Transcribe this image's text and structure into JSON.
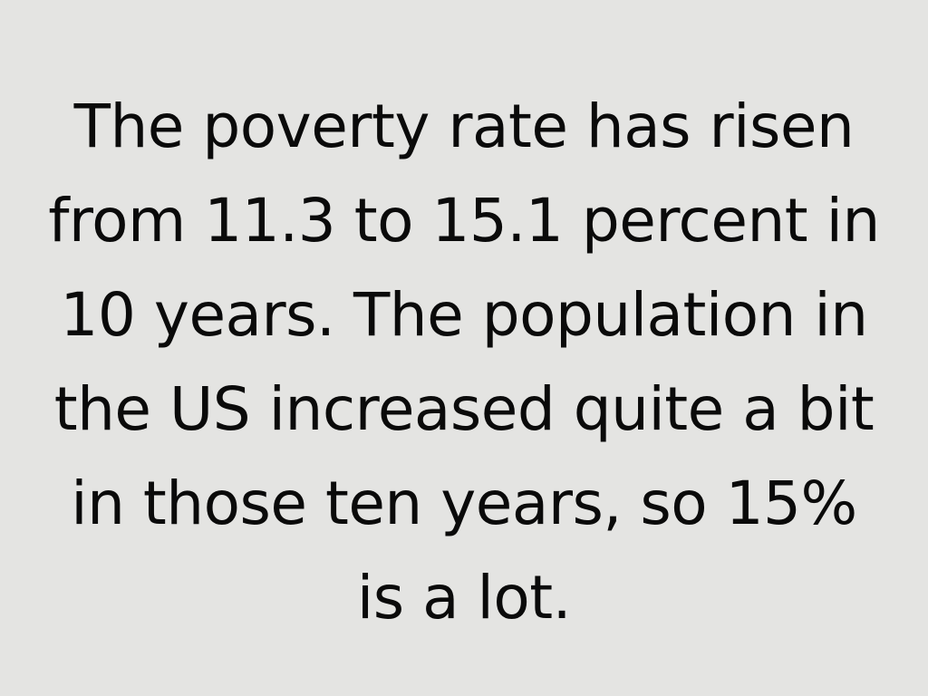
{
  "slide": {
    "lines": [
      "The poverty rate has risen",
      "from 11.3 to 15.1 percent in",
      "10 years. The population in",
      "the US increased quite a bit",
      "in those ten years, so 15%",
      "is a lot."
    ],
    "background_color": "#e4e4e2",
    "text_color": "#0a0a0a"
  }
}
